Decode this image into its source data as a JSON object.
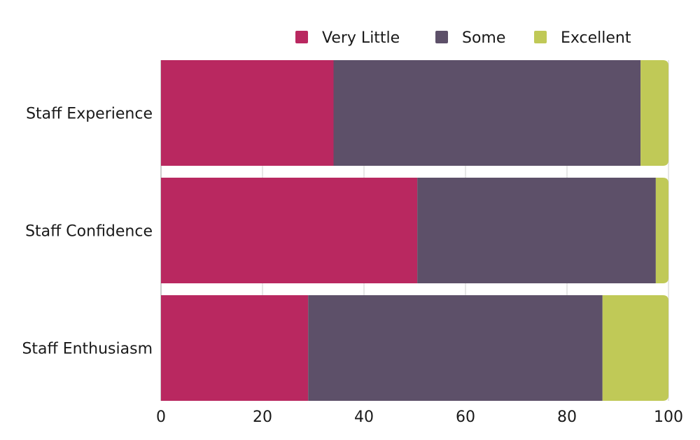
{
  "chart_data": {
    "type": "bar",
    "orientation": "horizontal",
    "stacked": true,
    "categories": [
      "Staff Experience",
      "Staff Confidence",
      "Staff Enthusiasm"
    ],
    "series": [
      {
        "name": "Very Little",
        "color": "#b92860",
        "values": [
          34,
          50.5,
          29
        ]
      },
      {
        "name": "Some",
        "color": "#5d5069",
        "values": [
          60.5,
          47,
          58
        ]
      },
      {
        "name": "Excellent",
        "color": "#c0c957",
        "values": [
          5.5,
          2.5,
          13
        ]
      }
    ],
    "xlim": [
      0,
      100
    ],
    "xticks": [
      "0",
      "20",
      "40",
      "60",
      "80",
      "100"
    ],
    "title": "",
    "xlabel": "",
    "ylabel": "",
    "grid": true,
    "legend_position": "top-right"
  }
}
